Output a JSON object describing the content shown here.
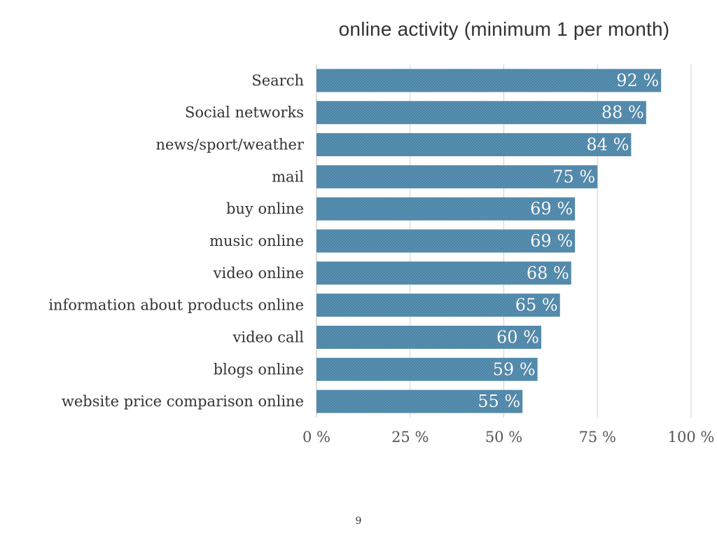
{
  "chart_data": {
    "type": "bar",
    "orientation": "horizontal",
    "title": "online activity (minimum 1 per month)",
    "categories": [
      "Search",
      "Social networks",
      "news/sport/weather",
      "mail",
      "buy online",
      "music online",
      "video online",
      "information about products online",
      "video call",
      "blogs online",
      "website price comparison online"
    ],
    "values": [
      92,
      88,
      84,
      75,
      69,
      69,
      68,
      65,
      60,
      59,
      55
    ],
    "value_labels": [
      "92 %",
      "88 %",
      "84 %",
      "75 %",
      "69 %",
      "69 %",
      "68 %",
      "65 %",
      "60 %",
      "59 %",
      "55 %"
    ],
    "xlim": [
      0,
      100
    ],
    "x_ticks": [
      0,
      25,
      50,
      75,
      100
    ],
    "x_tick_labels": [
      "0 %",
      "25 %",
      "50 %",
      "75 %",
      "100 %"
    ],
    "xlabel": "",
    "ylabel": "",
    "grid": "vertical",
    "legend": "none",
    "bar_color": "#4d86a8",
    "bar_pattern_color": "#7fb0cc"
  },
  "page_number": "9"
}
